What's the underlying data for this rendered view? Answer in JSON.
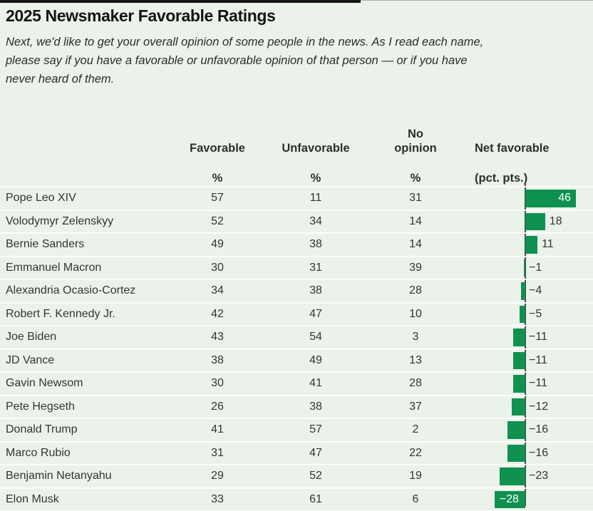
{
  "accent_color": "#0f9150",
  "divider_color": "#fcfdfb",
  "background_color": "#ebf2ea",
  "page": {
    "title": "2025 Newsmaker Favorable Ratings",
    "subtitle_lines": [
      "Next, we'd like to get your overall opinion of some people in the news. As I read each name,",
      "please say if you have a favorable or unfavorable opinion of that person — or if you have",
      "never heard of them."
    ]
  },
  "table": {
    "columns": [
      "",
      "Favorable",
      "Unfavorable",
      "No opinion",
      "Net favorable"
    ],
    "units": [
      "",
      "%",
      "%",
      "%",
      "(pct. pts.)"
    ]
  },
  "chart_data": {
    "type": "bar",
    "orientation": "horizontal",
    "title": "2025 Newsmaker Favorable Ratings",
    "categories": [
      "Pope Leo XIV",
      "Volodymyr Zelenskyy",
      "Bernie Sanders",
      "Emmanuel Macron",
      "Alexandria Ocasio-Cortez",
      "Robert F. Kennedy Jr.",
      "Joe Biden",
      "JD Vance",
      "Gavin Newsom",
      "Pete Hegseth",
      "Donald Trump",
      "Marco Rubio",
      "Benjamin Netanyahu",
      "Elon Musk"
    ],
    "series": [
      {
        "name": "Favorable",
        "unit": "%",
        "values": [
          57,
          52,
          49,
          30,
          34,
          42,
          43,
          38,
          30,
          26,
          41,
          31,
          29,
          33
        ]
      },
      {
        "name": "Unfavorable",
        "unit": "%",
        "values": [
          11,
          34,
          38,
          31,
          38,
          47,
          54,
          49,
          41,
          38,
          57,
          47,
          52,
          61
        ]
      },
      {
        "name": "No opinion",
        "unit": "%",
        "values": [
          31,
          14,
          14,
          39,
          28,
          10,
          3,
          13,
          28,
          37,
          2,
          22,
          19,
          6
        ]
      },
      {
        "name": "Net favorable",
        "unit": "(pct. pts.)",
        "values": [
          46,
          18,
          11,
          -1,
          -4,
          -5,
          -11,
          -11,
          -11,
          -12,
          -16,
          -16,
          -23,
          -28
        ]
      }
    ],
    "bar_series": "Net favorable",
    "bar_color": "#0f9150",
    "xlim": [
      -30,
      60
    ],
    "zero_axis": true,
    "grid": false,
    "legend": false
  }
}
